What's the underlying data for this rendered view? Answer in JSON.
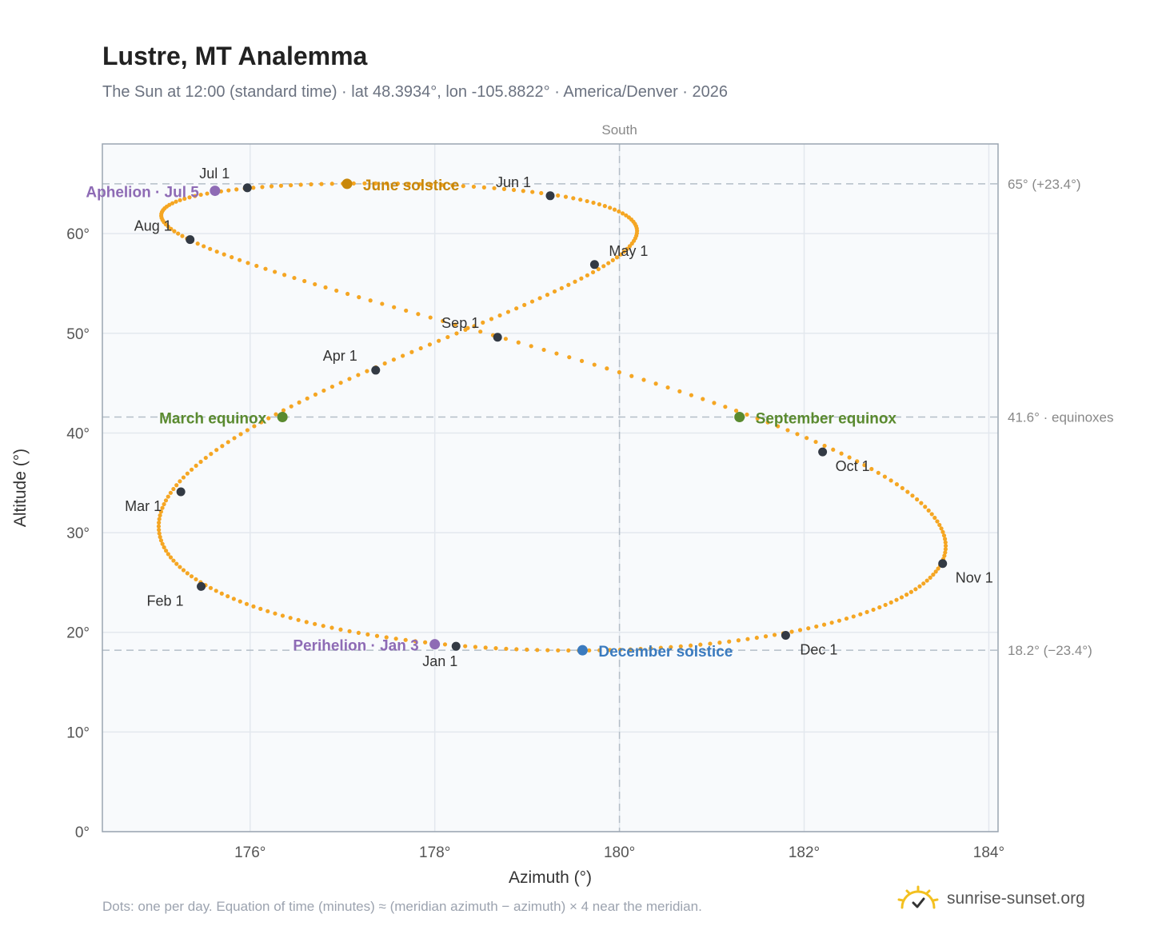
{
  "header": {
    "title": "Lustre, MT Analemma",
    "subtitle": "The Sun at 12:00 (standard time) · lat 48.3934°, lon -105.8822° · America/Denver · 2026"
  },
  "footer": {
    "note": "Dots: one per day. Equation of time (minutes) ≈ (meridian azimuth − azimuth) × 4 near the meridian.",
    "brand": "sunrise-sunset.org",
    "brand_icon": "sun-icon"
  },
  "chart_data": {
    "type": "scatter",
    "xlabel": "Azimuth (°)",
    "ylabel": "Altitude (°)",
    "xlim": [
      174.4,
      184.1
    ],
    "ylim": [
      0,
      69
    ],
    "x_ticks": [
      {
        "value": 176,
        "label": "176°"
      },
      {
        "value": 178,
        "label": "178°"
      },
      {
        "value": 180,
        "label": "180°"
      },
      {
        "value": 182,
        "label": "182°"
      },
      {
        "value": 184,
        "label": "184°"
      }
    ],
    "y_ticks": [
      {
        "value": 0,
        "label": "0°"
      },
      {
        "value": 10,
        "label": "10°"
      },
      {
        "value": 20,
        "label": "20°"
      },
      {
        "value": 30,
        "label": "30°"
      },
      {
        "value": 40,
        "label": "40°"
      },
      {
        "value": 50,
        "label": "50°"
      },
      {
        "value": 60,
        "label": "60°"
      }
    ],
    "grid": true,
    "meridian": {
      "azimuth": 180,
      "label": "South"
    },
    "reference_lines": [
      {
        "altitude": 65.0,
        "label": "65° (+23.4°)"
      },
      {
        "altitude": 41.6,
        "label": "41.6° · equinoxes"
      },
      {
        "altitude": 18.2,
        "label": "18.2° (−23.4°)"
      }
    ],
    "curve_color": "#f5a623",
    "month_markers": [
      {
        "label": "Jan 1",
        "az": 178.23,
        "alt": 18.6
      },
      {
        "label": "Feb 1",
        "az": 175.47,
        "alt": 24.6
      },
      {
        "label": "Mar 1",
        "az": 175.25,
        "alt": 34.1
      },
      {
        "label": "Apr 1",
        "az": 177.36,
        "alt": 46.3
      },
      {
        "label": "May 1",
        "az": 179.73,
        "alt": 56.9
      },
      {
        "label": "Jun 1",
        "az": 179.25,
        "alt": 63.8
      },
      {
        "label": "Jul 1",
        "az": 175.97,
        "alt": 64.6
      },
      {
        "label": "Aug 1",
        "az": 175.35,
        "alt": 59.4
      },
      {
        "label": "Sep 1",
        "az": 178.68,
        "alt": 49.6
      },
      {
        "label": "Oct 1",
        "az": 182.2,
        "alt": 38.1
      },
      {
        "label": "Nov 1",
        "az": 183.5,
        "alt": 26.9
      },
      {
        "label": "Dec 1",
        "az": 181.8,
        "alt": 19.7
      }
    ],
    "events": [
      {
        "label": "June solstice",
        "az": 177.05,
        "alt": 65.0,
        "color": "#c8870a"
      },
      {
        "label": "December solstice",
        "az": 179.6,
        "alt": 18.2,
        "color": "#3b7bbf"
      },
      {
        "label": "March equinox",
        "az": 176.35,
        "alt": 41.6,
        "color": "#5a8a2f"
      },
      {
        "label": "September equinox",
        "az": 181.3,
        "alt": 41.6,
        "color": "#5a8a2f"
      },
      {
        "label": "Aphelion · Jul 5",
        "az": 175.62,
        "alt": 64.3,
        "color": "#8e6bb5"
      },
      {
        "label": "Perihelion · Jan 3",
        "az": 178.0,
        "alt": 18.8,
        "color": "#8e6bb5"
      }
    ]
  }
}
